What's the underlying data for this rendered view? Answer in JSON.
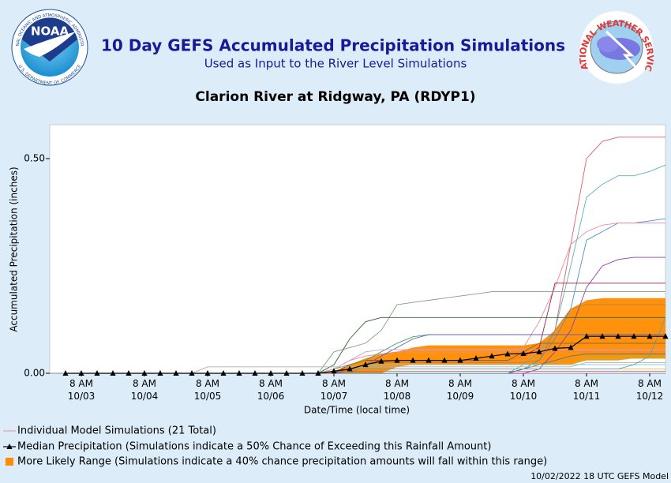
{
  "header": {
    "title": "10 Day GEFS Accumulated Precipitation Simulations",
    "subtitle": "Used as Input to the River Level Simulations",
    "noaa_logo": {
      "text": "NOAA",
      "ring_top": "NATIONAL OCEANIC AND ATMOSPHERIC ADMINISTRATION",
      "ring_bottom": "U.S. DEPARTMENT OF COMMERCE"
    },
    "nws_logo": {
      "text": "NATIONAL WEATHER SERVICE"
    }
  },
  "chart_data": {
    "type": "line",
    "title": "Clarion River at Ridgway, PA (RDYP1)",
    "y_label": "Accumulated Precipitation (inches)",
    "x_label": "Date/Time (local time)",
    "categories": [
      null,
      "8 AM\n10/03",
      null,
      null,
      null,
      "8 AM\n10/04",
      null,
      null,
      null,
      "8 AM\n10/05",
      null,
      null,
      null,
      "8 AM\n10/06",
      null,
      null,
      null,
      "8 AM\n10/07",
      null,
      null,
      null,
      "8 AM\n10/08",
      null,
      null,
      null,
      "8 AM\n10/09",
      null,
      null,
      null,
      "8 AM\n10/10",
      null,
      null,
      null,
      "8 AM\n10/11",
      null,
      null,
      null,
      "8 AM\n10/12",
      null
    ],
    "ylim": [
      0,
      0.579
    ],
    "yticks": [
      {
        "value": 0,
        "label": "0.00"
      },
      {
        "value": 0.5,
        "label": "0.50"
      }
    ],
    "grid": false,
    "legend_position": "bottom",
    "simulations": {
      "legend": "Individual Model Simulations (21 Total)",
      "legend_color": "#e88aa0",
      "series": [
        {
          "color": "#e06060",
          "values": [
            0,
            0,
            0,
            0,
            0,
            0,
            0,
            0,
            0,
            0,
            0,
            0,
            0,
            0,
            0,
            0,
            0,
            0,
            0,
            0,
            0,
            0,
            0,
            0,
            0,
            0,
            0,
            0,
            0,
            0.01,
            0.03,
            0.1,
            0.3,
            0.5,
            0.54,
            0.55,
            0.55,
            0.55,
            0.55
          ]
        },
        {
          "color": "#5fb0c0",
          "values": [
            0,
            0,
            0,
            0,
            0,
            0,
            0,
            0,
            0,
            0,
            0,
            0,
            0,
            0,
            0,
            0,
            0,
            0,
            0,
            0,
            0,
            0,
            0,
            0,
            0,
            0,
            0,
            0,
            0,
            0.02,
            0.05,
            0.1,
            0.25,
            0.41,
            0.44,
            0.46,
            0.46,
            0.47,
            0.485
          ]
        },
        {
          "color": "#4a90d0",
          "values": [
            0,
            0,
            0,
            0,
            0,
            0,
            0,
            0,
            0,
            0,
            0,
            0,
            0,
            0,
            0,
            0,
            0,
            0,
            0,
            0,
            0,
            0,
            0,
            0,
            0,
            0,
            0,
            0,
            0,
            0.01,
            0.03,
            0.08,
            0.15,
            0.31,
            0.33,
            0.35,
            0.35,
            0.355,
            0.36
          ]
        },
        {
          "color": "#e88aa0",
          "values": [
            0,
            0,
            0,
            0,
            0,
            0,
            0,
            0,
            0,
            0,
            0,
            0,
            0,
            0,
            0,
            0,
            0,
            0.01,
            0.03,
            0.04,
            0.045,
            0.05,
            0.05,
            0.05,
            0.05,
            0.05,
            0.05,
            0.05,
            0.05,
            0.06,
            0.12,
            0.2,
            0.3,
            0.33,
            0.345,
            0.35,
            0.35,
            0.35,
            0.35
          ]
        },
        {
          "color": "#9040a0",
          "values": [
            0,
            0,
            0,
            0,
            0,
            0,
            0,
            0,
            0,
            0,
            0,
            0,
            0,
            0,
            0,
            0,
            0,
            0,
            0,
            0,
            0,
            0,
            0,
            0,
            0,
            0,
            0,
            0,
            0,
            0,
            0.01,
            0.05,
            0.1,
            0.2,
            0.25,
            0.265,
            0.27,
            0.27,
            0.27
          ]
        },
        {
          "color": "#a02040",
          "values": [
            0,
            0,
            0,
            0,
            0,
            0,
            0,
            0,
            0,
            0,
            0,
            0,
            0,
            0,
            0,
            0,
            0,
            0,
            0.02,
            0.03,
            0.03,
            0.03,
            0.03,
            0.03,
            0.03,
            0.03,
            0.03,
            0.03,
            0.03,
            0.04,
            0.06,
            0.21,
            0.21,
            0.21,
            0.21,
            0.21,
            0.21,
            0.21,
            0.21
          ]
        },
        {
          "color": "#80a080",
          "values": [
            0,
            0,
            0,
            0,
            0,
            0,
            0,
            0,
            0,
            0,
            0,
            0,
            0,
            0,
            0,
            0,
            0,
            0.05,
            0.06,
            0.07,
            0.1,
            0.16,
            0.165,
            0.17,
            0.175,
            0.18,
            0.185,
            0.19,
            0.19,
            0.19,
            0.19,
            0.19,
            0.19,
            0.19,
            0.19,
            0.19,
            0.19,
            0.19,
            0.19
          ]
        },
        {
          "color": "#306030",
          "values": [
            0,
            0,
            0,
            0,
            0,
            0,
            0,
            0,
            0,
            0,
            0,
            0,
            0,
            0,
            0,
            0,
            0,
            0.02,
            0.08,
            0.12,
            0.13,
            0.13,
            0.13,
            0.13,
            0.13,
            0.13,
            0.13,
            0.13,
            0.13,
            0.13,
            0.13,
            0.13,
            0.13,
            0.13,
            0.13,
            0.13,
            0.13,
            0.13,
            0.13
          ]
        },
        {
          "color": "#c08040",
          "values": [
            0,
            0,
            0,
            0,
            0,
            0,
            0,
            0,
            0,
            0,
            0,
            0,
            0,
            0,
            0,
            0,
            0,
            0,
            0,
            0.02,
            0.025,
            0.025,
            0.025,
            0.025,
            0.025,
            0.025,
            0.025,
            0.025,
            0.025,
            0.025,
            0.03,
            0.1,
            0.15,
            0.16,
            0.16,
            0.16,
            0.16,
            0.16,
            0.16
          ]
        },
        {
          "color": "#40a060",
          "values": [
            0,
            0,
            0,
            0,
            0,
            0,
            0,
            0,
            0,
            0,
            0,
            0,
            0,
            0,
            0,
            0,
            0,
            0.01,
            0.02,
            0.03,
            0.05,
            0.07,
            0.085,
            0.09,
            0.09,
            0.09,
            0.09,
            0.09,
            0.09,
            0.09,
            0.09,
            0.09,
            0.09,
            0.09,
            0.09,
            0.09,
            0.09,
            0.09,
            0.09
          ]
        },
        {
          "color": "#6060c0",
          "values": [
            0,
            0,
            0,
            0,
            0,
            0,
            0,
            0,
            0,
            0,
            0,
            0,
            0,
            0,
            0,
            0,
            0,
            0,
            0.01,
            0.02,
            0.04,
            0.06,
            0.08,
            0.09,
            0.09,
            0.09,
            0.09,
            0.09,
            0.09,
            0.09,
            0.09,
            0.09,
            0.09,
            0.09,
            0.09,
            0.09,
            0.09,
            0.09,
            0.09
          ]
        },
        {
          "color": "#d0a0d0",
          "values": [
            0,
            0,
            0,
            0,
            0,
            0,
            0,
            0,
            0,
            0,
            0,
            0,
            0,
            0,
            0,
            0,
            0,
            0.01,
            0.03,
            0.05,
            0.055,
            0.055,
            0.055,
            0.055,
            0.055,
            0.055,
            0.055,
            0.055,
            0.055,
            0.055,
            0.055,
            0.055,
            0.055,
            0.055,
            0.055,
            0.055,
            0.055,
            0.055,
            0.055
          ]
        },
        {
          "color": "#ff8060",
          "values": [
            0,
            0,
            0,
            0,
            0,
            0,
            0,
            0,
            0,
            0,
            0,
            0,
            0,
            0,
            0,
            0,
            0,
            0,
            0.01,
            0.02,
            0.03,
            0.03,
            0.03,
            0.03,
            0.03,
            0.03,
            0.03,
            0.03,
            0.03,
            0.04,
            0.05,
            0.05,
            0.05,
            0.05,
            0.05,
            0.05,
            0.05,
            0.05,
            0.05
          ]
        },
        {
          "color": "#408080",
          "values": [
            0,
            0,
            0,
            0,
            0,
            0,
            0,
            0,
            0,
            0,
            0,
            0,
            0,
            0,
            0,
            0,
            0,
            0,
            0,
            0,
            0,
            0,
            0,
            0,
            0,
            0,
            0,
            0,
            0,
            0.01,
            0.02,
            0.03,
            0.04,
            0.045,
            0.045,
            0.045,
            0.045,
            0.045,
            0.045
          ]
        },
        {
          "color": "#a0c040",
          "values": [
            0,
            0,
            0,
            0,
            0,
            0,
            0,
            0,
            0,
            0,
            0,
            0,
            0,
            0,
            0,
            0,
            0,
            0.005,
            0.01,
            0.015,
            0.02,
            0.02,
            0.02,
            0.02,
            0.02,
            0.02,
            0.02,
            0.02,
            0.02,
            0.02,
            0.02,
            0.02,
            0.02,
            0.035,
            0.035,
            0.035,
            0.035,
            0.035,
            0.035
          ]
        },
        {
          "color": "#b0b0b0",
          "values": [
            0,
            0,
            0,
            0,
            0,
            0,
            0,
            0,
            0,
            0.015,
            0.015,
            0.015,
            0.015,
            0.015,
            0.015,
            0.015,
            0.015,
            0.015,
            0.015,
            0.015,
            0.015,
            0.015,
            0.015,
            0.015,
            0.015,
            0.015,
            0.015,
            0.015,
            0.015,
            0.015,
            0.015,
            0.015,
            0.015,
            0.025,
            0.025,
            0.025,
            0.025,
            0.025,
            0.025
          ]
        },
        {
          "color": "#80c0e0",
          "values": [
            0,
            0,
            0,
            0,
            0,
            0,
            0,
            0,
            0,
            0,
            0,
            0,
            0,
            0,
            0,
            0,
            0,
            0,
            0.01,
            0.02,
            0.02,
            0.02,
            0.02,
            0.02,
            0.02,
            0.02,
            0.02,
            0.02,
            0.02,
            0.02,
            0.02,
            0.02,
            0.02,
            0.02,
            0.02,
            0.02,
            0.02,
            0.02,
            0.02
          ]
        },
        {
          "color": "#e0c060",
          "values": [
            0,
            0,
            0,
            0,
            0,
            0,
            0,
            0,
            0,
            0,
            0,
            0,
            0,
            0,
            0,
            0,
            0,
            0,
            0.01,
            0.01,
            0.01,
            0.01,
            0.01,
            0.01,
            0.01,
            0.01,
            0.01,
            0.01,
            0.01,
            0.01,
            0.01,
            0.01,
            0.01,
            0.01,
            0.01,
            0.01,
            0.01,
            0.01,
            0.01
          ]
        },
        {
          "color": "#c06080",
          "values": [
            0,
            0,
            0,
            0,
            0,
            0,
            0,
            0,
            0,
            0,
            0,
            0,
            0,
            0,
            0,
            0,
            0,
            0,
            0.005,
            0.005,
            0.005,
            0.005,
            0.005,
            0.005,
            0.005,
            0.005,
            0.005,
            0.005,
            0.005,
            0.005,
            0.005,
            0.005,
            0.005,
            0.005,
            0.005,
            0.005,
            0.005,
            0.005,
            0.005
          ]
        },
        {
          "color": "#60a0a0",
          "values": [
            0,
            0,
            0,
            0,
            0,
            0,
            0,
            0,
            0,
            0,
            0,
            0,
            0,
            0,
            0,
            0,
            0,
            0,
            0.01,
            0.01,
            0.01,
            0.01,
            0.01,
            0.01,
            0.01,
            0.01,
            0.01,
            0.01,
            0.01,
            0.01,
            0.01,
            0.01,
            0.01,
            0.01,
            0.01,
            0.01,
            0.02,
            0.04,
            0.13
          ]
        },
        {
          "color": "#806040",
          "values": [
            0,
            0,
            0,
            0,
            0,
            0,
            0,
            0,
            0,
            0,
            0,
            0,
            0,
            0,
            0,
            0,
            0,
            0,
            0.01,
            0.02,
            0.03,
            0.03,
            0.03,
            0.03,
            0.03,
            0.03,
            0.03,
            0.03,
            0.03,
            0.05,
            0.07,
            0.07,
            0.07,
            0.07,
            0.07,
            0.07,
            0.07,
            0.07,
            0.07
          ]
        }
      ]
    },
    "median": {
      "name": "Median Precipitation (Simulations indicate a 50% Chance of Exceeding this Rainfall Amount)",
      "color": "#000000",
      "values": [
        0,
        0,
        0,
        0,
        0,
        0,
        0,
        0,
        0,
        0,
        0,
        0,
        0,
        0,
        0,
        0,
        0,
        0.005,
        0.01,
        0.02,
        0.028,
        0.03,
        0.03,
        0.03,
        0.03,
        0.03,
        0.035,
        0.04,
        0.045,
        0.046,
        0.05,
        0.058,
        0.06,
        0.086,
        0.086,
        0.086,
        0.086,
        0.086,
        0.086
      ]
    },
    "likely_range": {
      "name": "More Likely Range (Simulations indicate a 40% chance precipitation amounts will fall within this range)",
      "color": "#ff8c00",
      "lower": [
        0,
        0,
        0,
        0,
        0,
        0,
        0,
        0,
        0,
        0,
        0,
        0,
        0,
        0,
        0,
        0,
        0,
        0,
        0,
        0,
        0,
        0.015,
        0.02,
        0.02,
        0.02,
        0.02,
        0.02,
        0.02,
        0.02,
        0.02,
        0.02,
        0.02,
        0.02,
        0.03,
        0.03,
        0.03,
        0.035,
        0.035,
        0.035
      ],
      "upper": [
        0,
        0,
        0,
        0,
        0,
        0,
        0,
        0,
        0,
        0,
        0,
        0,
        0,
        0,
        0,
        0,
        0,
        0.005,
        0.02,
        0.035,
        0.045,
        0.05,
        0.06,
        0.065,
        0.065,
        0.065,
        0.065,
        0.065,
        0.065,
        0.065,
        0.07,
        0.1,
        0.15,
        0.17,
        0.175,
        0.175,
        0.175,
        0.175,
        0.175
      ]
    }
  },
  "footer": "10/02/2022 18 UTC GEFS Model"
}
